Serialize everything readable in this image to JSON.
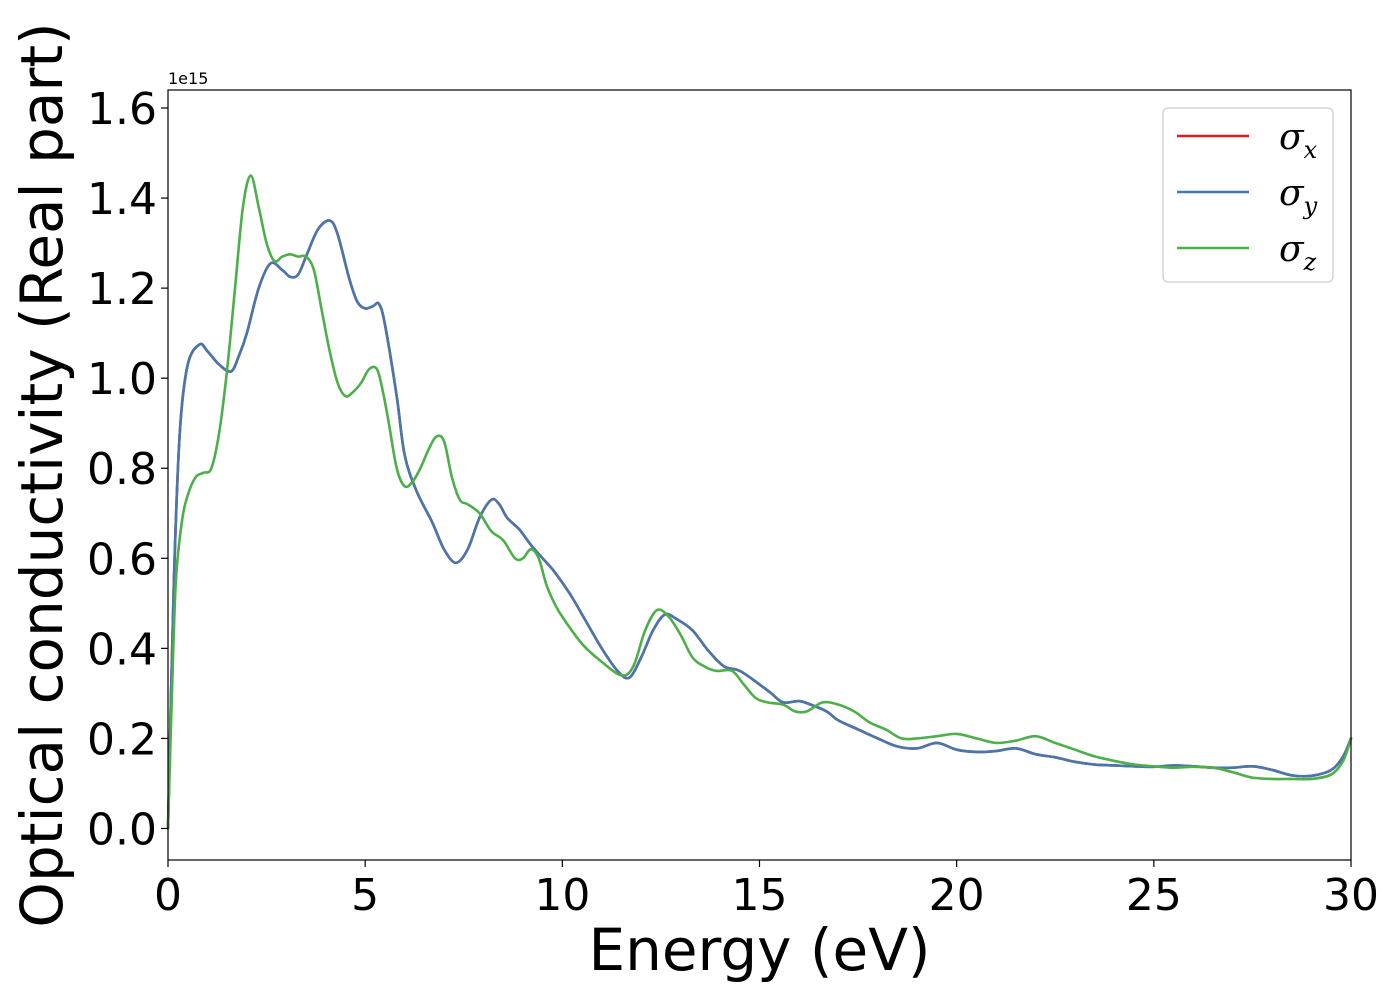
{
  "chart_data": {
    "type": "line",
    "xlabel": "Energy (eV)",
    "ylabel": "Optical conductivity (Real part)",
    "y_offset_label": "1e15",
    "xlim": [
      0,
      30
    ],
    "ylim": [
      -0.07,
      1.64
    ],
    "x_ticks": [
      0,
      5,
      10,
      15,
      20,
      25,
      30
    ],
    "x_tick_labels": [
      "0",
      "5",
      "10",
      "15",
      "20",
      "25",
      "30"
    ],
    "y_ticks": [
      0.0,
      0.2,
      0.4,
      0.6,
      0.8,
      1.0,
      1.2,
      1.4,
      1.6
    ],
    "y_tick_labels": [
      "0.0",
      "0.2",
      "0.4",
      "0.6",
      "0.8",
      "1.0",
      "1.2",
      "1.4",
      "1.6"
    ],
    "grid": false,
    "legend_position": "top-right",
    "series": [
      {
        "name": "σx",
        "legend_base": "σ",
        "legend_sub": "x",
        "color": "#e41a1c",
        "x": [
          0,
          0.15,
          0.3,
          0.5,
          0.8,
          1.0,
          1.3,
          1.6,
          1.8,
          2.0,
          2.3,
          2.6,
          2.9,
          3.1,
          3.3,
          3.5,
          3.8,
          4.1,
          4.3,
          4.6,
          4.8,
          5.0,
          5.2,
          5.35,
          5.5,
          5.8,
          6.0,
          6.3,
          6.7,
          7.0,
          7.3,
          7.6,
          7.9,
          8.2,
          8.4,
          8.6,
          8.9,
          9.2,
          9.5,
          9.8,
          10.2,
          10.6,
          11.0,
          11.4,
          11.7,
          12.0,
          12.3,
          12.6,
          12.9,
          13.3,
          13.7,
          14.1,
          14.5,
          15.0,
          15.3,
          15.6,
          16.0,
          16.3,
          16.7,
          17.0,
          17.5,
          18.0,
          18.5,
          19.0,
          19.5,
          20.0,
          20.5,
          21.0,
          21.5,
          22.0,
          22.5,
          23.0,
          23.5,
          24.0,
          24.5,
          25.0,
          25.5,
          26.0,
          26.5,
          27.0,
          27.5,
          28.0,
          28.5,
          29.0,
          29.5,
          29.8,
          30.0
        ],
        "y": [
          0.0,
          0.55,
          0.88,
          1.03,
          1.075,
          1.06,
          1.03,
          1.015,
          1.05,
          1.1,
          1.2,
          1.255,
          1.24,
          1.225,
          1.23,
          1.27,
          1.33,
          1.35,
          1.32,
          1.22,
          1.17,
          1.155,
          1.16,
          1.165,
          1.12,
          0.96,
          0.83,
          0.75,
          0.68,
          0.62,
          0.59,
          0.62,
          0.69,
          0.73,
          0.72,
          0.69,
          0.665,
          0.63,
          0.6,
          0.57,
          0.52,
          0.46,
          0.4,
          0.35,
          0.335,
          0.38,
          0.44,
          0.475,
          0.465,
          0.44,
          0.395,
          0.36,
          0.35,
          0.32,
          0.3,
          0.28,
          0.283,
          0.275,
          0.26,
          0.24,
          0.22,
          0.2,
          0.182,
          0.178,
          0.19,
          0.175,
          0.17,
          0.172,
          0.178,
          0.165,
          0.158,
          0.148,
          0.142,
          0.14,
          0.138,
          0.137,
          0.14,
          0.138,
          0.135,
          0.135,
          0.138,
          0.13,
          0.118,
          0.117,
          0.13,
          0.16,
          0.2
        ]
      },
      {
        "name": "σy",
        "legend_base": "σ",
        "legend_sub": "y",
        "color": "#4677ad",
        "x": [
          0,
          0.15,
          0.3,
          0.5,
          0.8,
          1.0,
          1.3,
          1.6,
          1.8,
          2.0,
          2.3,
          2.6,
          2.9,
          3.1,
          3.3,
          3.5,
          3.8,
          4.1,
          4.3,
          4.6,
          4.8,
          5.0,
          5.2,
          5.35,
          5.5,
          5.8,
          6.0,
          6.3,
          6.7,
          7.0,
          7.3,
          7.6,
          7.9,
          8.2,
          8.4,
          8.6,
          8.9,
          9.2,
          9.5,
          9.8,
          10.2,
          10.6,
          11.0,
          11.4,
          11.7,
          12.0,
          12.3,
          12.6,
          12.9,
          13.3,
          13.7,
          14.1,
          14.5,
          15.0,
          15.3,
          15.6,
          16.0,
          16.3,
          16.7,
          17.0,
          17.5,
          18.0,
          18.5,
          19.0,
          19.5,
          20.0,
          20.5,
          21.0,
          21.5,
          22.0,
          22.5,
          23.0,
          23.5,
          24.0,
          24.5,
          25.0,
          25.5,
          26.0,
          26.5,
          27.0,
          27.5,
          28.0,
          28.5,
          29.0,
          29.5,
          29.8,
          30.0
        ],
        "y": [
          0.0,
          0.55,
          0.88,
          1.03,
          1.075,
          1.06,
          1.03,
          1.015,
          1.05,
          1.1,
          1.2,
          1.255,
          1.24,
          1.225,
          1.23,
          1.27,
          1.33,
          1.35,
          1.32,
          1.22,
          1.17,
          1.155,
          1.16,
          1.165,
          1.12,
          0.96,
          0.83,
          0.75,
          0.68,
          0.62,
          0.59,
          0.62,
          0.69,
          0.73,
          0.72,
          0.69,
          0.665,
          0.63,
          0.6,
          0.57,
          0.52,
          0.46,
          0.4,
          0.35,
          0.335,
          0.38,
          0.44,
          0.475,
          0.465,
          0.44,
          0.395,
          0.36,
          0.35,
          0.32,
          0.3,
          0.28,
          0.283,
          0.275,
          0.26,
          0.24,
          0.22,
          0.2,
          0.182,
          0.178,
          0.19,
          0.175,
          0.17,
          0.172,
          0.178,
          0.165,
          0.158,
          0.148,
          0.142,
          0.14,
          0.138,
          0.137,
          0.14,
          0.138,
          0.135,
          0.135,
          0.138,
          0.13,
          0.118,
          0.117,
          0.13,
          0.16,
          0.2
        ]
      },
      {
        "name": "σz",
        "legend_base": "σ",
        "legend_sub": "z",
        "color": "#4daf4a",
        "x": [
          0,
          0.1,
          0.2,
          0.35,
          0.5,
          0.7,
          0.9,
          1.1,
          1.3,
          1.5,
          1.7,
          1.9,
          2.1,
          2.3,
          2.5,
          2.7,
          2.9,
          3.1,
          3.3,
          3.5,
          3.7,
          3.9,
          4.1,
          4.3,
          4.5,
          4.7,
          4.9,
          5.1,
          5.3,
          5.45,
          5.6,
          5.8,
          6.0,
          6.2,
          6.4,
          6.6,
          6.8,
          7.0,
          7.2,
          7.4,
          7.6,
          7.9,
          8.2,
          8.5,
          8.8,
          9.0,
          9.2,
          9.4,
          9.6,
          9.8,
          10.0,
          10.5,
          11.0,
          11.5,
          11.8,
          12.1,
          12.4,
          12.7,
          13.0,
          13.3,
          13.6,
          13.9,
          14.3,
          14.6,
          14.9,
          15.2,
          15.6,
          15.9,
          16.2,
          16.6,
          17.0,
          17.4,
          17.8,
          18.2,
          18.6,
          19.0,
          19.5,
          20.0,
          20.5,
          21.0,
          21.5,
          22.0,
          22.5,
          23.0,
          23.5,
          24.0,
          24.5,
          25.0,
          25.5,
          26.0,
          26.5,
          27.0,
          27.5,
          28.0,
          28.5,
          29.0,
          29.5,
          29.8,
          30.0
        ],
        "y": [
          0.0,
          0.3,
          0.55,
          0.68,
          0.74,
          0.78,
          0.79,
          0.8,
          0.88,
          1.02,
          1.2,
          1.38,
          1.45,
          1.38,
          1.3,
          1.26,
          1.27,
          1.275,
          1.27,
          1.27,
          1.24,
          1.15,
          1.06,
          0.99,
          0.96,
          0.97,
          0.99,
          1.02,
          1.02,
          0.97,
          0.9,
          0.8,
          0.76,
          0.77,
          0.8,
          0.84,
          0.87,
          0.86,
          0.78,
          0.73,
          0.72,
          0.7,
          0.66,
          0.64,
          0.6,
          0.6,
          0.62,
          0.6,
          0.54,
          0.5,
          0.47,
          0.41,
          0.37,
          0.34,
          0.36,
          0.44,
          0.485,
          0.47,
          0.43,
          0.38,
          0.36,
          0.35,
          0.35,
          0.32,
          0.29,
          0.28,
          0.275,
          0.26,
          0.26,
          0.28,
          0.275,
          0.26,
          0.235,
          0.22,
          0.2,
          0.2,
          0.205,
          0.21,
          0.2,
          0.19,
          0.195,
          0.205,
          0.19,
          0.175,
          0.16,
          0.15,
          0.142,
          0.138,
          0.135,
          0.137,
          0.135,
          0.125,
          0.113,
          0.11,
          0.11,
          0.11,
          0.12,
          0.15,
          0.2
        ]
      }
    ]
  }
}
